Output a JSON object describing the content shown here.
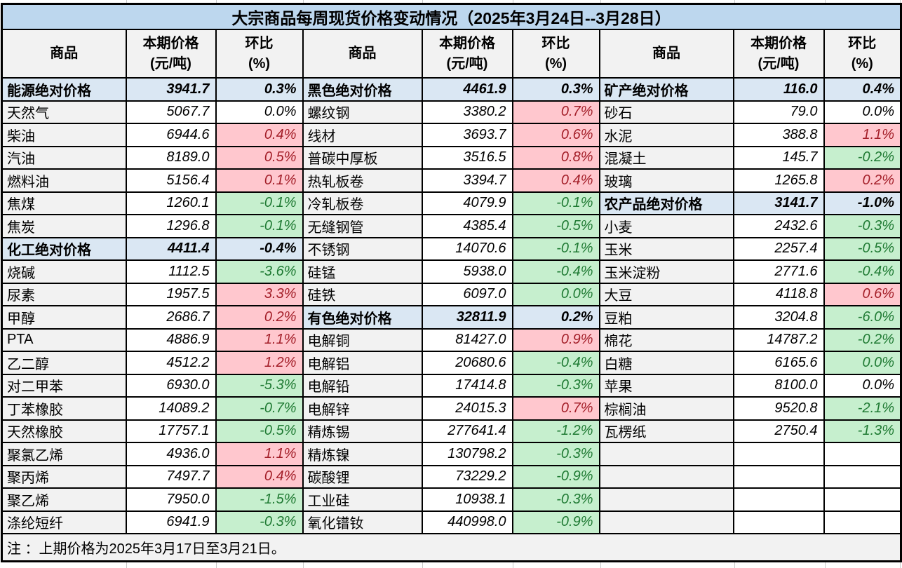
{
  "title": "大宗商品每周现货价格变动情况（2025年3月24日--3月28日）",
  "header": {
    "commodity": "商品",
    "price_line1": "本期价格",
    "price_line2": "(元/吨)",
    "pct_line1": "环比",
    "pct_line2": "(%)"
  },
  "note": "注 ：上期价格为2025年3月17日至3月21日。",
  "colors": {
    "title_bg": "#BDD7EE",
    "section_bg": "#DAE7F3",
    "cell_gray": "#F2F2F2",
    "up_bg": "#FFC7CE",
    "up_text": "#A31E28",
    "down_bg": "#C6EFCE",
    "down_text": "#1F7A33"
  },
  "groups": [
    {
      "rows": [
        {
          "name": "能源绝对价格",
          "price": "3941.7",
          "pct": "0.3%",
          "type": "section"
        },
        {
          "name": "天然气",
          "price": "5067.7",
          "pct": "0.0%",
          "type": "flat"
        },
        {
          "name": "柴油",
          "price": "6944.6",
          "pct": "0.4%",
          "type": "up"
        },
        {
          "name": "汽油",
          "price": "8189.0",
          "pct": "0.5%",
          "type": "up"
        },
        {
          "name": "燃料油",
          "price": "5156.4",
          "pct": "0.1%",
          "type": "up"
        },
        {
          "name": "焦煤",
          "price": "1260.1",
          "pct": "-0.1%",
          "type": "down"
        },
        {
          "name": "焦炭",
          "price": "1296.8",
          "pct": "-0.1%",
          "type": "down"
        },
        {
          "name": "化工绝对价格",
          "price": "4411.4",
          "pct": "-0.4%",
          "type": "section"
        },
        {
          "name": "烧碱",
          "price": "1112.5",
          "pct": "-3.6%",
          "type": "down"
        },
        {
          "name": "尿素",
          "price": "1957.5",
          "pct": "3.3%",
          "type": "up"
        },
        {
          "name": "甲醇",
          "price": "2686.7",
          "pct": "0.2%",
          "type": "up"
        },
        {
          "name": "PTA",
          "price": "4886.9",
          "pct": "1.1%",
          "type": "up"
        },
        {
          "name": "乙二醇",
          "price": "4512.2",
          "pct": "1.2%",
          "type": "up"
        },
        {
          "name": "对二甲苯",
          "price": "6930.0",
          "pct": "-5.3%",
          "type": "down"
        },
        {
          "name": "丁苯橡胶",
          "price": "14089.2",
          "pct": "-0.7%",
          "type": "down"
        },
        {
          "name": "天然橡胶",
          "price": "17757.1",
          "pct": "-0.5%",
          "type": "down"
        },
        {
          "name": "聚氯乙烯",
          "price": "4936.0",
          "pct": "1.1%",
          "type": "up"
        },
        {
          "name": "聚丙烯",
          "price": "7497.7",
          "pct": "0.4%",
          "type": "up"
        },
        {
          "name": "聚乙烯",
          "price": "7950.0",
          "pct": "-1.5%",
          "type": "down"
        },
        {
          "name": "涤纶短纤",
          "price": "6941.9",
          "pct": "-0.3%",
          "type": "down"
        }
      ]
    },
    {
      "rows": [
        {
          "name": "黑色绝对价格",
          "price": "4461.9",
          "pct": "0.3%",
          "type": "section"
        },
        {
          "name": "螺纹钢",
          "price": "3380.2",
          "pct": "0.7%",
          "type": "up"
        },
        {
          "name": "线材",
          "price": "3693.7",
          "pct": "0.6%",
          "type": "up"
        },
        {
          "name": "普碳中厚板",
          "price": "3516.5",
          "pct": "0.8%",
          "type": "up"
        },
        {
          "name": "热轧板卷",
          "price": "3394.7",
          "pct": "0.4%",
          "type": "up"
        },
        {
          "name": "冷轧板卷",
          "price": "4079.9",
          "pct": "-0.1%",
          "type": "down"
        },
        {
          "name": "无缝钢管",
          "price": "4385.4",
          "pct": "-0.5%",
          "type": "down"
        },
        {
          "name": "不锈钢",
          "price": "14070.6",
          "pct": "-0.1%",
          "type": "down"
        },
        {
          "name": "硅锰",
          "price": "5938.0",
          "pct": "-0.4%",
          "type": "down"
        },
        {
          "name": "硅铁",
          "price": "6097.0",
          "pct": "0.0%",
          "type": "down"
        },
        {
          "name": "有色绝对价格",
          "price": "32811.9",
          "pct": "0.2%",
          "type": "section"
        },
        {
          "name": "电解铜",
          "price": "81427.0",
          "pct": "0.9%",
          "type": "up"
        },
        {
          "name": "电解铝",
          "price": "20680.6",
          "pct": "-0.4%",
          "type": "down"
        },
        {
          "name": "电解铅",
          "price": "17414.8",
          "pct": "-0.3%",
          "type": "down"
        },
        {
          "name": "电解锌",
          "price": "24015.3",
          "pct": "0.7%",
          "type": "up"
        },
        {
          "name": "精炼锡",
          "price": "277641.4",
          "pct": "-1.2%",
          "type": "down"
        },
        {
          "name": "精炼镍",
          "price": "130798.2",
          "pct": "-0.3%",
          "type": "down"
        },
        {
          "name": "碳酸锂",
          "price": "73229.2",
          "pct": "-0.9%",
          "type": "down"
        },
        {
          "name": "工业硅",
          "price": "10938.1",
          "pct": "-0.3%",
          "type": "down"
        },
        {
          "name": "氧化镨钕",
          "price": "440998.0",
          "pct": "-0.9%",
          "type": "down"
        }
      ]
    },
    {
      "rows": [
        {
          "name": "矿产绝对价格",
          "price": "116.0",
          "pct": "0.4%",
          "type": "section"
        },
        {
          "name": "砂石",
          "price": "79.0",
          "pct": "0.0%",
          "type": "flat"
        },
        {
          "name": "水泥",
          "price": "388.8",
          "pct": "1.1%",
          "type": "up"
        },
        {
          "name": "混凝土",
          "price": "145.7",
          "pct": "-0.2%",
          "type": "down"
        },
        {
          "name": "玻璃",
          "price": "1265.8",
          "pct": "0.2%",
          "type": "up"
        },
        {
          "name": "农产品绝对价格",
          "price": "3141.7",
          "pct": "-1.0%",
          "type": "section"
        },
        {
          "name": "小麦",
          "price": "2432.6",
          "pct": "-0.3%",
          "type": "down"
        },
        {
          "name": "玉米",
          "price": "2257.4",
          "pct": "-0.5%",
          "type": "down"
        },
        {
          "name": "玉米淀粉",
          "price": "2771.6",
          "pct": "-0.4%",
          "type": "down"
        },
        {
          "name": "大豆",
          "price": "4118.8",
          "pct": "0.6%",
          "type": "up"
        },
        {
          "name": "豆粕",
          "price": "3204.8",
          "pct": "-6.0%",
          "type": "down"
        },
        {
          "name": "棉花",
          "price": "14787.2",
          "pct": "-0.2%",
          "type": "down"
        },
        {
          "name": "白糖",
          "price": "6165.6",
          "pct": "0.0%",
          "type": "down"
        },
        {
          "name": "苹果",
          "price": "8100.0",
          "pct": "0.0%",
          "type": "flat"
        },
        {
          "name": "棕榈油",
          "price": "9520.8",
          "pct": "-2.1%",
          "type": "down"
        },
        {
          "name": "瓦楞纸",
          "price": "2750.4",
          "pct": "-1.3%",
          "type": "down"
        },
        {
          "name": "",
          "price": "",
          "pct": "",
          "type": "empty"
        },
        {
          "name": "",
          "price": "",
          "pct": "",
          "type": "empty"
        },
        {
          "name": "",
          "price": "",
          "pct": "",
          "type": "empty"
        },
        {
          "name": "",
          "price": "",
          "pct": "",
          "type": "empty"
        }
      ]
    }
  ]
}
